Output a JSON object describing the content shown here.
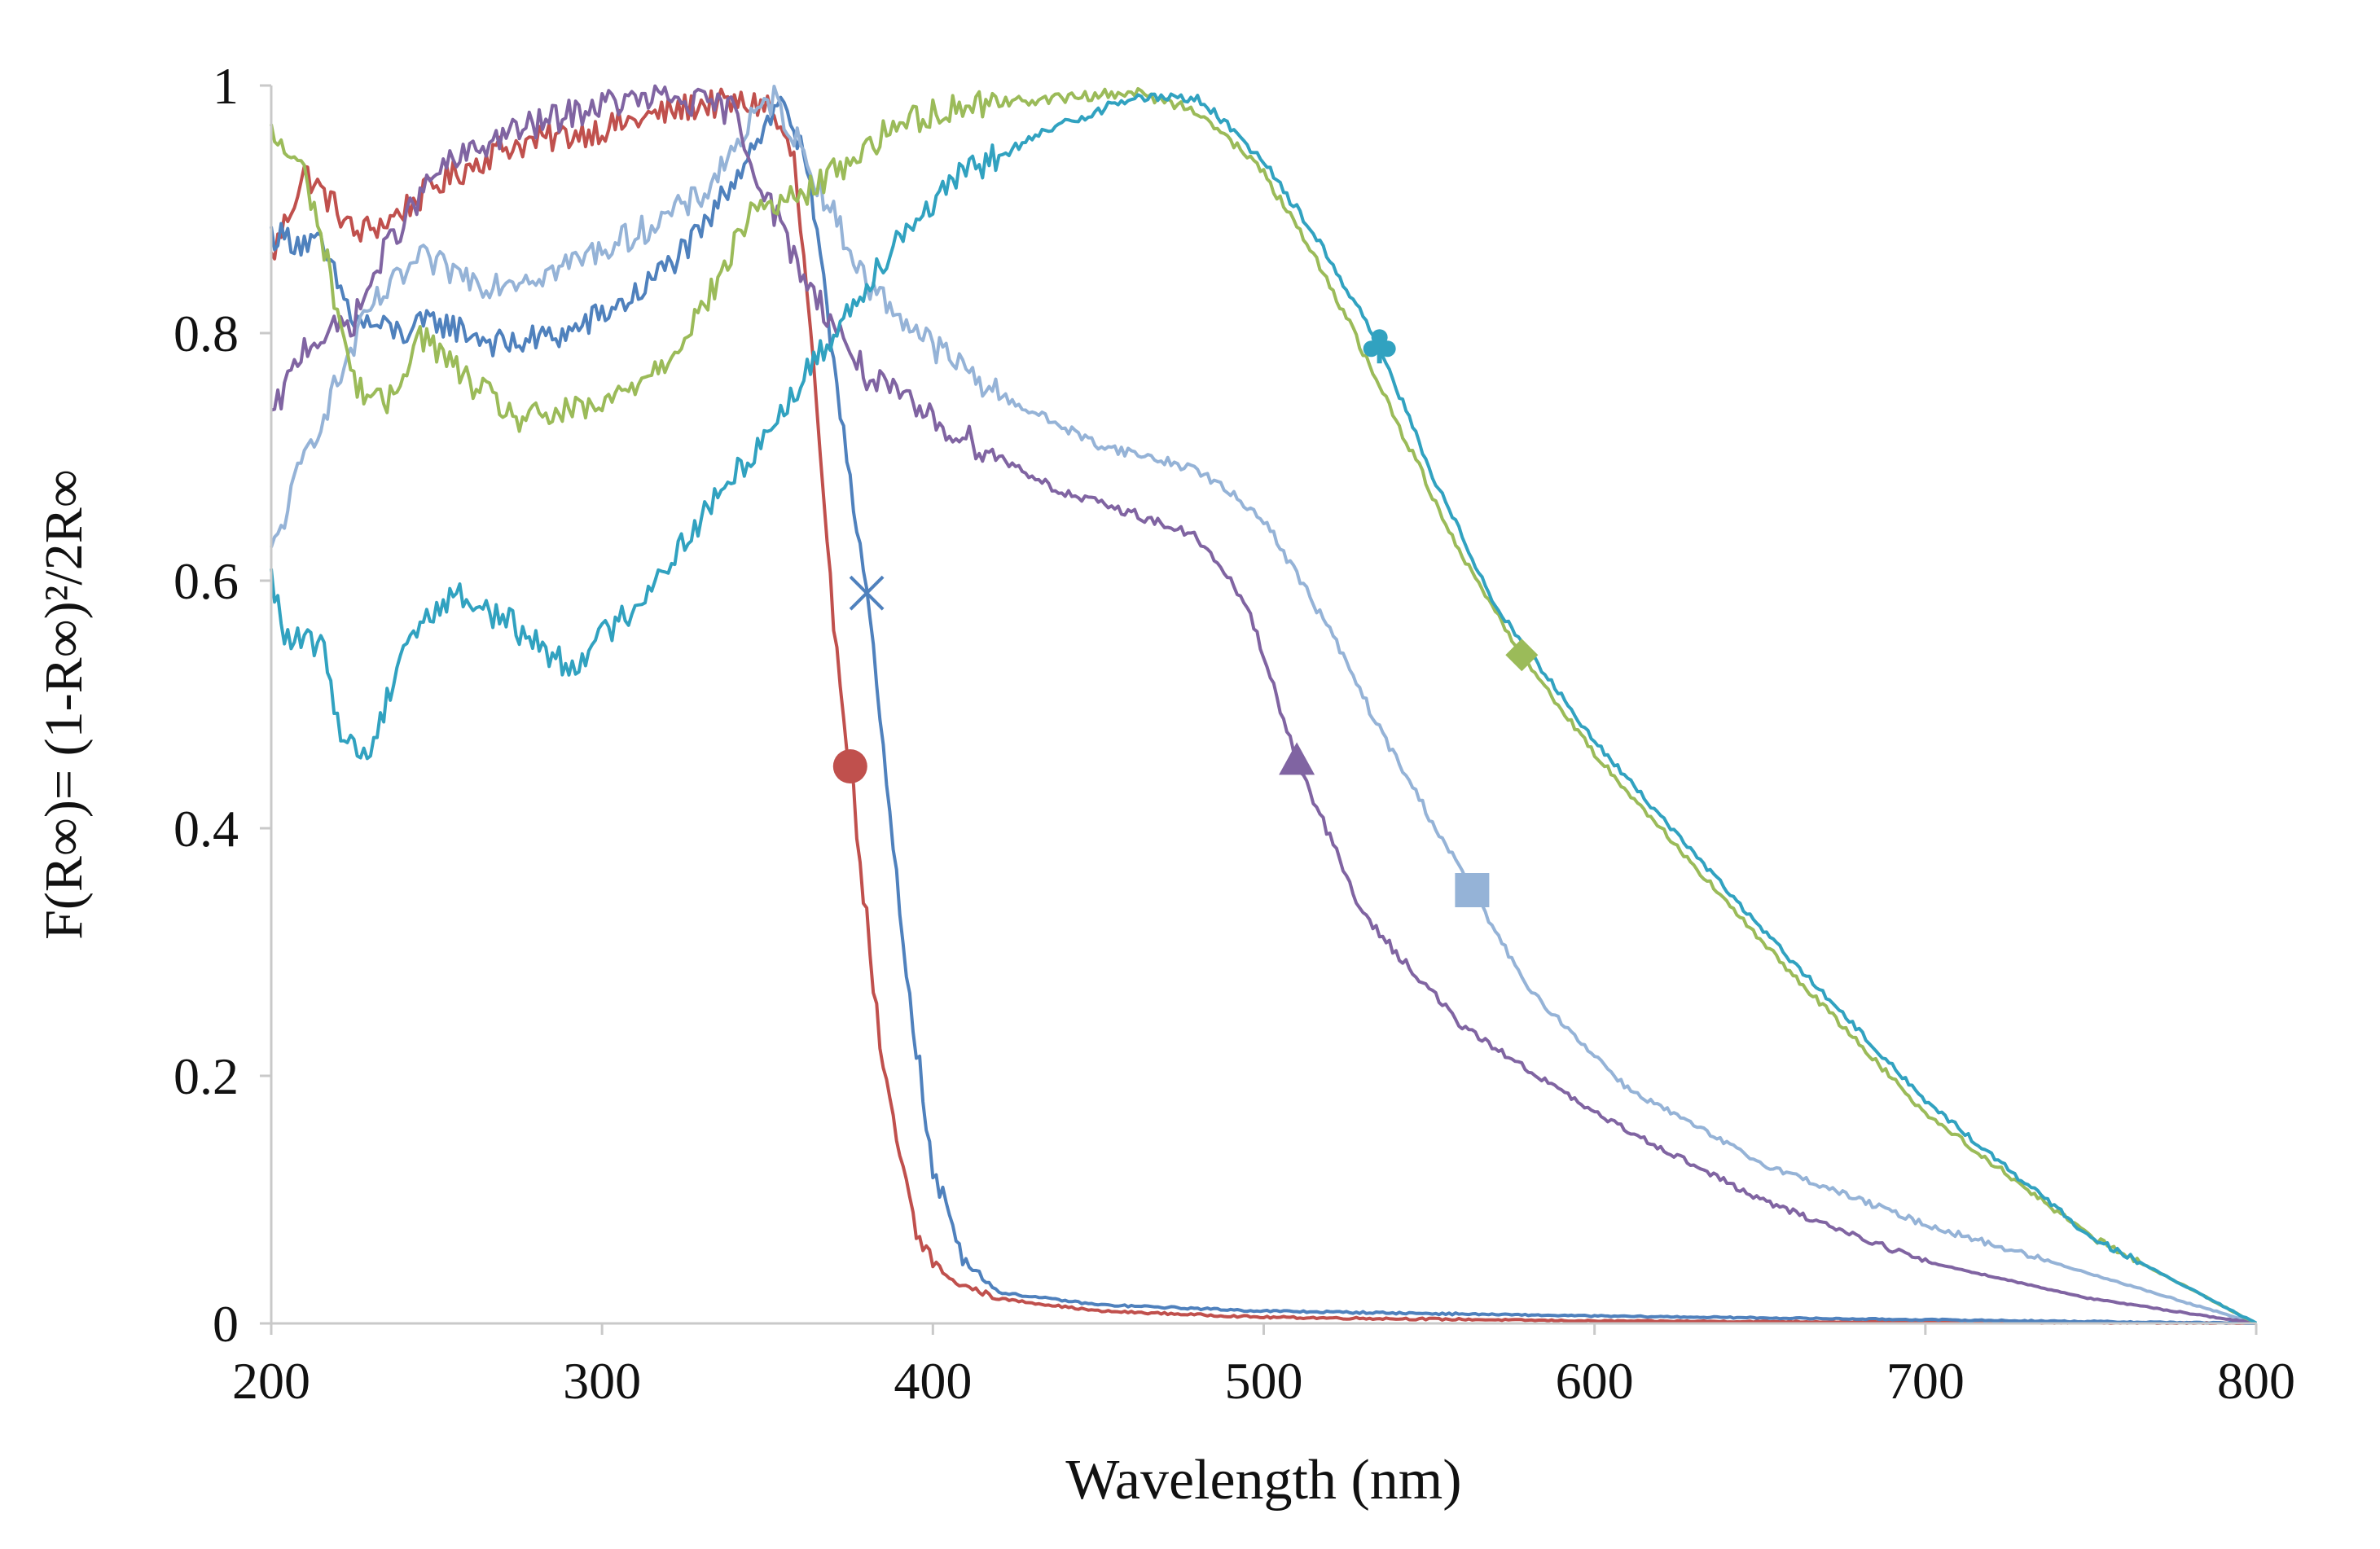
{
  "chart_data": {
    "type": "line",
    "title": "",
    "xlabel": "Wavelength (nm)",
    "ylabel": "F(R∞)= (1-R∞)²/2R∞",
    "xlim": [
      200,
      800
    ],
    "ylim": [
      0,
      1
    ],
    "x_ticks": [
      200,
      300,
      400,
      500,
      600,
      700,
      800
    ],
    "y_ticks": [
      0,
      0.2,
      0.4,
      0.6,
      0.8,
      1
    ],
    "x_tick_labels": [
      "200",
      "300",
      "400",
      "500",
      "600",
      "700",
      "800"
    ],
    "y_tick_labels": [
      "0",
      "0.2",
      "0.4",
      "0.6",
      "0.8",
      "1"
    ],
    "grid": false,
    "legend": "none",
    "series": [
      {
        "name": "red circle",
        "color": "#c0504d",
        "marker": "circle",
        "marker_point": [
          375,
          0.45
        ],
        "points": [
          [
            200,
            0.86
          ],
          [
            210,
            0.93
          ],
          [
            220,
            0.9
          ],
          [
            225,
            0.88
          ],
          [
            235,
            0.89
          ],
          [
            250,
            0.92
          ],
          [
            270,
            0.95
          ],
          [
            300,
            0.965
          ],
          [
            330,
            0.985
          ],
          [
            350,
            0.985
          ],
          [
            358,
            0.94
          ],
          [
            363,
            0.8
          ],
          [
            368,
            0.62
          ],
          [
            375,
            0.45
          ],
          [
            385,
            0.2
          ],
          [
            395,
            0.07
          ],
          [
            405,
            0.035
          ],
          [
            420,
            0.02
          ],
          [
            450,
            0.01
          ],
          [
            500,
            0.005
          ],
          [
            600,
            0.002
          ],
          [
            700,
            0.001
          ],
          [
            800,
            0
          ]
        ]
      },
      {
        "name": "blue x",
        "color": "#4f81bd",
        "marker": "x",
        "marker_point": [
          380,
          0.59
        ],
        "points": [
          [
            200,
            0.88
          ],
          [
            215,
            0.87
          ],
          [
            225,
            0.81
          ],
          [
            240,
            0.8
          ],
          [
            250,
            0.81
          ],
          [
            270,
            0.79
          ],
          [
            290,
            0.8
          ],
          [
            310,
            0.83
          ],
          [
            330,
            0.88
          ],
          [
            345,
            0.95
          ],
          [
            355,
            0.99
          ],
          [
            362,
            0.93
          ],
          [
            370,
            0.78
          ],
          [
            380,
            0.59
          ],
          [
            390,
            0.33
          ],
          [
            400,
            0.12
          ],
          [
            410,
            0.05
          ],
          [
            420,
            0.025
          ],
          [
            450,
            0.015
          ],
          [
            500,
            0.01
          ],
          [
            600,
            0.006
          ],
          [
            700,
            0.003
          ],
          [
            800,
            0
          ]
        ]
      },
      {
        "name": "light blue square",
        "color": "#95b3d7",
        "marker": "square",
        "marker_point": [
          563,
          0.35
        ],
        "points": [
          [
            200,
            0.62
          ],
          [
            210,
            0.7
          ],
          [
            220,
            0.76
          ],
          [
            230,
            0.82
          ],
          [
            245,
            0.86
          ],
          [
            265,
            0.84
          ],
          [
            285,
            0.85
          ],
          [
            310,
            0.88
          ],
          [
            330,
            0.91
          ],
          [
            345,
            0.97
          ],
          [
            352,
            0.99
          ],
          [
            360,
            0.95
          ],
          [
            380,
            0.84
          ],
          [
            400,
            0.79
          ],
          [
            420,
            0.75
          ],
          [
            450,
            0.71
          ],
          [
            480,
            0.69
          ],
          [
            500,
            0.65
          ],
          [
            520,
            0.56
          ],
          [
            535,
            0.48
          ],
          [
            550,
            0.41
          ],
          [
            563,
            0.35
          ],
          [
            580,
            0.27
          ],
          [
            610,
            0.19
          ],
          [
            650,
            0.13
          ],
          [
            700,
            0.08
          ],
          [
            750,
            0.04
          ],
          [
            800,
            0
          ]
        ]
      },
      {
        "name": "purple triangle",
        "color": "#8064a2",
        "marker": "triangle",
        "marker_point": [
          510,
          0.455
        ],
        "points": [
          [
            200,
            0.73
          ],
          [
            210,
            0.79
          ],
          [
            225,
            0.81
          ],
          [
            235,
            0.87
          ],
          [
            250,
            0.93
          ],
          [
            270,
            0.96
          ],
          [
            300,
            0.985
          ],
          [
            320,
            0.99
          ],
          [
            340,
            0.98
          ],
          [
            345,
            0.94
          ],
          [
            360,
            0.85
          ],
          [
            380,
            0.765
          ],
          [
            400,
            0.73
          ],
          [
            420,
            0.7
          ],
          [
            440,
            0.67
          ],
          [
            460,
            0.655
          ],
          [
            480,
            0.635
          ],
          [
            495,
            0.58
          ],
          [
            510,
            0.455
          ],
          [
            530,
            0.33
          ],
          [
            560,
            0.24
          ],
          [
            600,
            0.17
          ],
          [
            650,
            0.1
          ],
          [
            700,
            0.05
          ],
          [
            750,
            0.02
          ],
          [
            800,
            0
          ]
        ]
      },
      {
        "name": "green diamond",
        "color": "#9bbb59",
        "marker": "diamond",
        "marker_point": [
          578,
          0.54
        ],
        "points": [
          [
            200,
            0.96
          ],
          [
            210,
            0.93
          ],
          [
            215,
            0.88
          ],
          [
            225,
            0.76
          ],
          [
            235,
            0.74
          ],
          [
            245,
            0.8
          ],
          [
            260,
            0.76
          ],
          [
            275,
            0.73
          ],
          [
            300,
            0.74
          ],
          [
            320,
            0.78
          ],
          [
            335,
            0.84
          ],
          [
            345,
            0.9
          ],
          [
            360,
            0.91
          ],
          [
            375,
            0.94
          ],
          [
            390,
            0.97
          ],
          [
            410,
            0.985
          ],
          [
            440,
            0.99
          ],
          [
            460,
            0.995
          ],
          [
            480,
            0.98
          ],
          [
            500,
            0.93
          ],
          [
            520,
            0.84
          ],
          [
            540,
            0.73
          ],
          [
            560,
            0.62
          ],
          [
            578,
            0.54
          ],
          [
            600,
            0.46
          ],
          [
            650,
            0.31
          ],
          [
            700,
            0.17
          ],
          [
            750,
            0.07
          ],
          [
            800,
            0
          ]
        ]
      },
      {
        "name": "teal club",
        "color": "#31a2c0",
        "marker": "club",
        "marker_point": [
          535,
          0.79
        ],
        "points": [
          [
            200,
            0.6
          ],
          [
            205,
            0.55
          ],
          [
            215,
            0.55
          ],
          [
            222,
            0.47
          ],
          [
            230,
            0.46
          ],
          [
            240,
            0.55
          ],
          [
            255,
            0.59
          ],
          [
            270,
            0.57
          ],
          [
            290,
            0.53
          ],
          [
            310,
            0.58
          ],
          [
            330,
            0.65
          ],
          [
            350,
            0.72
          ],
          [
            370,
            0.8
          ],
          [
            390,
            0.88
          ],
          [
            410,
            0.93
          ],
          [
            440,
            0.97
          ],
          [
            460,
            0.99
          ],
          [
            480,
            0.99
          ],
          [
            500,
            0.94
          ],
          [
            520,
            0.86
          ],
          [
            535,
            0.79
          ],
          [
            550,
            0.69
          ],
          [
            570,
            0.58
          ],
          [
            600,
            0.47
          ],
          [
            650,
            0.32
          ],
          [
            700,
            0.18
          ],
          [
            750,
            0.07
          ],
          [
            800,
            0
          ]
        ]
      }
    ]
  }
}
